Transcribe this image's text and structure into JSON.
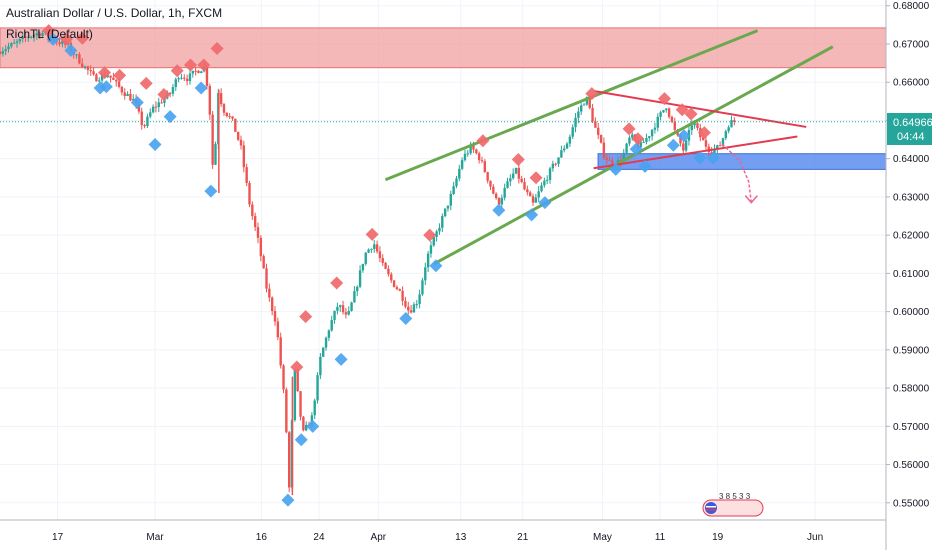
{
  "header": {
    "symbol_title": "Australian Dollar / U.S. Dollar, 1h, FXCM",
    "indicator_label": "RichTL (Default)"
  },
  "price_scale": {
    "last_price": "0.64966",
    "countdown": "04:44"
  },
  "colors": {
    "up_candle": "#26a69a",
    "down_candle": "#ef5350",
    "resistance_zone": "#ef9a9a",
    "support_zone": "#5b8def",
    "channel_line": "#6aa84f",
    "triangle_line": "#e53950",
    "high_marker": "#f0696b",
    "low_marker": "#4aa3f0",
    "last_price_badge": "#26a69a"
  },
  "chart_data": {
    "type": "candlestick",
    "y_axis": {
      "range": [
        0.5455,
        0.6815
      ],
      "ticks": [
        "0.68000",
        "0.67000",
        "0.66000",
        "0.65000",
        "0.64000",
        "0.63000",
        "0.62000",
        "0.61000",
        "0.60000",
        "0.59000",
        "0.58000",
        "0.57000",
        "0.56000",
        "0.55000"
      ],
      "tick_values": [
        0.68,
        0.67,
        0.66,
        0.65,
        0.64,
        0.63,
        0.62,
        0.61,
        0.6,
        0.59,
        0.58,
        0.57,
        0.56,
        0.55
      ]
    },
    "x_axis": {
      "range": [
        0,
        100
      ],
      "labels": [
        {
          "text": "17",
          "x": 6.5
        },
        {
          "text": "Mar",
          "x": 17.5
        },
        {
          "text": "16",
          "x": 29.5
        },
        {
          "text": "24",
          "x": 36
        },
        {
          "text": "Apr",
          "x": 42.7
        },
        {
          "text": "13",
          "x": 52
        },
        {
          "text": "21",
          "x": 59
        },
        {
          "text": "May",
          "x": 68
        },
        {
          "text": "11",
          "x": 74.5
        },
        {
          "text": "19",
          "x": 81
        },
        {
          "text": "Jun",
          "x": 92
        }
      ]
    },
    "price_path": [
      [
        0,
        0.668
      ],
      [
        2,
        0.67
      ],
      [
        3.5,
        0.672
      ],
      [
        5,
        0.673
      ],
      [
        6.5,
        0.671
      ],
      [
        8,
        0.6695
      ],
      [
        9.5,
        0.665
      ],
      [
        11,
        0.661
      ],
      [
        12.5,
        0.662
      ],
      [
        14,
        0.658
      ],
      [
        15.5,
        0.655
      ],
      [
        16.5,
        0.648
      ],
      [
        17.5,
        0.653
      ],
      [
        18.5,
        0.655
      ],
      [
        19.5,
        0.657
      ],
      [
        20.5,
        0.662
      ],
      [
        21.5,
        0.661
      ],
      [
        22.5,
        0.663
      ],
      [
        23.5,
        0.664
      ],
      [
        24,
        0.652
      ],
      [
        24.5,
        0.631
      ],
      [
        24.8,
        0.659
      ],
      [
        25.5,
        0.653
      ],
      [
        26.5,
        0.65
      ],
      [
        27.5,
        0.643
      ],
      [
        28.5,
        0.628
      ],
      [
        29.5,
        0.618
      ],
      [
        30.5,
        0.605
      ],
      [
        31.5,
        0.597
      ],
      [
        32.5,
        0.575
      ],
      [
        33,
        0.552
      ],
      [
        33.5,
        0.586
      ],
      [
        34.5,
        0.568
      ],
      [
        35.5,
        0.572
      ],
      [
        36.5,
        0.588
      ],
      [
        37.5,
        0.596
      ],
      [
        38.5,
        0.602
      ],
      [
        39.5,
        0.598
      ],
      [
        40.5,
        0.606
      ],
      [
        41.5,
        0.615
      ],
      [
        42.5,
        0.618
      ],
      [
        43.5,
        0.612
      ],
      [
        44.5,
        0.608
      ],
      [
        45.5,
        0.605
      ],
      [
        46.5,
        0.6
      ],
      [
        47.5,
        0.603
      ],
      [
        48.5,
        0.614
      ],
      [
        49.5,
        0.62
      ],
      [
        50.5,
        0.626
      ],
      [
        51.5,
        0.632
      ],
      [
        52.5,
        0.64
      ],
      [
        53.5,
        0.643
      ],
      [
        54.5,
        0.64
      ],
      [
        55.5,
        0.634
      ],
      [
        56.5,
        0.628
      ],
      [
        57.5,
        0.633
      ],
      [
        58.5,
        0.637
      ],
      [
        59.5,
        0.632
      ],
      [
        60.5,
        0.628
      ],
      [
        61.5,
        0.633
      ],
      [
        62.5,
        0.637
      ],
      [
        63.5,
        0.641
      ],
      [
        64.5,
        0.645
      ],
      [
        65.5,
        0.652
      ],
      [
        66.5,
        0.656
      ],
      [
        67.5,
        0.648
      ],
      [
        68.5,
        0.641
      ],
      [
        69.5,
        0.638
      ],
      [
        70.5,
        0.64
      ],
      [
        71.5,
        0.646
      ],
      [
        72.5,
        0.643
      ],
      [
        73.5,
        0.646
      ],
      [
        74.5,
        0.65
      ],
      [
        75.5,
        0.654
      ],
      [
        76.5,
        0.647
      ],
      [
        77.5,
        0.642
      ],
      [
        78.5,
        0.65
      ],
      [
        79.5,
        0.645
      ],
      [
        80.5,
        0.642
      ],
      [
        81.5,
        0.643
      ],
      [
        82.5,
        0.649
      ],
      [
        83,
        0.6497
      ]
    ],
    "spikes": [
      {
        "x": 24.7,
        "low": 0.631,
        "high": 0.658
      },
      {
        "x": 33,
        "low": 0.552,
        "high": 0.583
      }
    ],
    "zones": [
      {
        "name": "resistance",
        "x0": 0,
        "x1": 100,
        "y0": 0.6638,
        "y1": 0.6742
      },
      {
        "name": "support",
        "x0": 67.5,
        "x1": 100,
        "y0": 0.6372,
        "y1": 0.6413
      }
    ],
    "lines": [
      {
        "name": "channel-upper",
        "x0": 43.5,
        "y0": 0.6345,
        "x1": 85.5,
        "y1": 0.6735
      },
      {
        "name": "channel-lower",
        "x0": 49,
        "y0": 0.6125,
        "x1": 94,
        "y1": 0.6693
      },
      {
        "name": "triangle-upper",
        "x0": 67,
        "y0": 0.6577,
        "x1": 91,
        "y1": 0.6483
      },
      {
        "name": "triangle-lower",
        "x0": 67,
        "y0": 0.6375,
        "x1": 90,
        "y1": 0.6458
      }
    ],
    "forecast_arrow": {
      "points": [
        [
          81.5,
          0.6438
        ],
        [
          83.5,
          0.6395
        ],
        [
          84.5,
          0.634
        ],
        [
          84.8,
          0.6285
        ]
      ]
    },
    "high_markers": [
      [
        5.5,
        0.6735
      ],
      [
        7.5,
        0.6713
      ],
      [
        9.3,
        0.6715
      ],
      [
        11.8,
        0.6625
      ],
      [
        13.5,
        0.6618
      ],
      [
        16.5,
        0.6597
      ],
      [
        18.5,
        0.6568
      ],
      [
        20,
        0.663
      ],
      [
        21.5,
        0.6645
      ],
      [
        23,
        0.6645
      ],
      [
        24.5,
        0.6688
      ],
      [
        33.5,
        0.5855
      ],
      [
        34.5,
        0.5987
      ],
      [
        38,
        0.6075
      ],
      [
        42,
        0.6202
      ],
      [
        48.5,
        0.62
      ],
      [
        54.5,
        0.6447
      ],
      [
        58.5,
        0.6398
      ],
      [
        60.5,
        0.635
      ],
      [
        66.8,
        0.657
      ],
      [
        71,
        0.6478
      ],
      [
        72,
        0.6452
      ],
      [
        75,
        0.6557
      ],
      [
        77,
        0.6528
      ],
      [
        78,
        0.6517
      ],
      [
        79.5,
        0.6468
      ]
    ],
    "low_markers": [
      [
        6,
        0.6712
      ],
      [
        8,
        0.6683
      ],
      [
        11.3,
        0.6585
      ],
      [
        12,
        0.6588
      ],
      [
        15.5,
        0.6547
      ],
      [
        17.5,
        0.6437
      ],
      [
        19.2,
        0.651
      ],
      [
        22.7,
        0.6585
      ],
      [
        23.8,
        0.6315
      ],
      [
        32.5,
        0.5507
      ],
      [
        34,
        0.5665
      ],
      [
        35.3,
        0.57
      ],
      [
        38.5,
        0.5875
      ],
      [
        45.8,
        0.5982
      ],
      [
        49.2,
        0.612
      ],
      [
        56.3,
        0.6265
      ],
      [
        60,
        0.6253
      ],
      [
        61.5,
        0.6285
      ],
      [
        69.5,
        0.6372
      ],
      [
        71.8,
        0.6425
      ],
      [
        72.8,
        0.638
      ],
      [
        76,
        0.6435
      ],
      [
        77.2,
        0.646
      ],
      [
        79,
        0.6402
      ],
      [
        80.5,
        0.6402
      ]
    ],
    "last_price": 0.64966
  }
}
